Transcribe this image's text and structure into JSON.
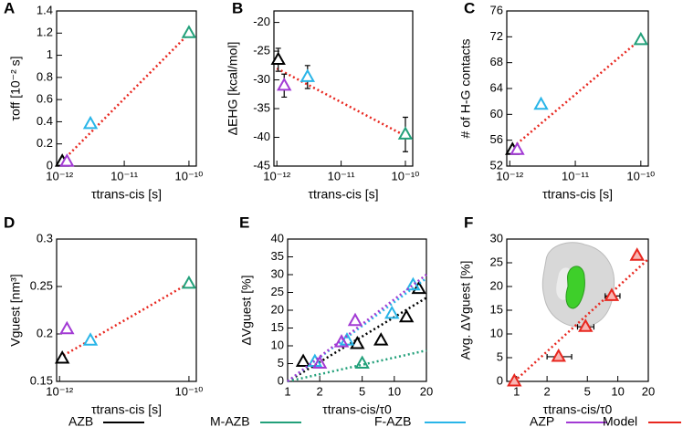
{
  "charts": [
    {
      "type": "scatter",
      "label": "A",
      "x_label": "τtrans-cis [s]",
      "y_label": "τoff [10⁻² s]",
      "xlog": true,
      "xlim": [
        9e-13,
        1.3e-10
      ],
      "xticks": [
        {
          "value": 1e-12,
          "label": "10⁻¹²"
        },
        {
          "value": 1e-11,
          "label": "10⁻¹¹"
        },
        {
          "value": 1e-10,
          "label": "10⁻¹⁰"
        }
      ],
      "ylim": [
        0,
        1.4
      ],
      "yticks": [
        0,
        0.2,
        0.4,
        0.6,
        0.8,
        1,
        1.2,
        1.4
      ],
      "series": [
        {
          "style": "line",
          "color": "#e8271f",
          "x": [
            1e-12,
            1.1e-10
          ],
          "values": [
            0.02,
            1.22
          ]
        },
        {
          "style": "points",
          "color": "#000000",
          "x": [
            1.1e-12
          ],
          "values": [
            0.04
          ]
        },
        {
          "style": "points",
          "color": "#22a07a",
          "x": [
            1e-10
          ],
          "values": [
            1.2
          ]
        },
        {
          "style": "points",
          "color": "#29b5e8",
          "x": [
            3e-12
          ],
          "values": [
            0.38
          ]
        },
        {
          "style": "points",
          "color": "#a23ad4",
          "x": [
            1.3e-12
          ],
          "values": [
            0.04
          ]
        }
      ]
    },
    {
      "type": "scatter",
      "label": "B",
      "x_label": "τtrans-cis [s]",
      "y_label": "ΔEHG [kcal/mol]",
      "xlog": true,
      "xlim": [
        9e-13,
        1.3e-10
      ],
      "xticks": [
        {
          "value": 1e-12,
          "label": "10⁻¹²"
        },
        {
          "value": 1e-11,
          "label": "10⁻¹¹"
        },
        {
          "value": 1e-10,
          "label": "10⁻¹⁰"
        }
      ],
      "ylim": [
        -45,
        -18
      ],
      "yticks": [
        -45,
        -40,
        -35,
        -30,
        -25,
        -20
      ],
      "series": [
        {
          "style": "line",
          "color": "#e8271f",
          "x": [
            1e-12,
            1.1e-10
          ],
          "values": [
            -28,
            -40
          ]
        },
        {
          "style": "points",
          "color": "#000000",
          "x": [
            1.05e-12
          ],
          "values": [
            -26.5
          ],
          "errors": [
            2
          ]
        },
        {
          "style": "points",
          "color": "#22a07a",
          "x": [
            1e-10
          ],
          "values": [
            -39.5
          ],
          "errors": [
            3
          ]
        },
        {
          "style": "points",
          "color": "#29b5e8",
          "x": [
            3e-12
          ],
          "values": [
            -29.5
          ],
          "errors": [
            2
          ]
        },
        {
          "style": "points",
          "color": "#a23ad4",
          "x": [
            1.3e-12
          ],
          "values": [
            -31
          ],
          "errors": [
            2
          ]
        }
      ]
    },
    {
      "type": "scatter",
      "label": "C",
      "x_label": "τtrans-cis [s]",
      "y_label": "# of H-G contacts",
      "xlog": true,
      "xlim": [
        9e-13,
        1.3e-10
      ],
      "xticks": [
        {
          "value": 1e-12,
          "label": "10⁻¹²"
        },
        {
          "value": 1e-11,
          "label": "10⁻¹¹"
        },
        {
          "value": 1e-10,
          "label": "10⁻¹⁰"
        }
      ],
      "ylim": [
        52,
        76
      ],
      "yticks": [
        52,
        56,
        60,
        64,
        68,
        72,
        76
      ],
      "series": [
        {
          "style": "line",
          "color": "#e8271f",
          "x": [
            1e-12,
            1.1e-10
          ],
          "values": [
            54.5,
            72
          ]
        },
        {
          "style": "points",
          "color": "#000000",
          "x": [
            1.1e-12
          ],
          "values": [
            54.5
          ]
        },
        {
          "style": "points",
          "color": "#22a07a",
          "x": [
            1e-10
          ],
          "values": [
            71.5
          ]
        },
        {
          "style": "points",
          "color": "#29b5e8",
          "x": [
            3e-12
          ],
          "values": [
            61.5
          ]
        },
        {
          "style": "points",
          "color": "#a23ad4",
          "x": [
            1.3e-12
          ],
          "values": [
            54.5
          ]
        }
      ]
    },
    {
      "type": "scatter",
      "label": "D",
      "x_label": "τtrans-cis [s]",
      "y_label": "Vguest [nm³]",
      "xlog": true,
      "xlim": [
        9e-13,
        1.3e-10
      ],
      "xticks": [
        {
          "value": 1e-12,
          "label": "10⁻¹²"
        },
        {
          "value": 1e-10,
          "label": "10⁻¹⁰"
        }
      ],
      "ylim": [
        0.15,
        0.3
      ],
      "yticks": [
        0.15,
        0.2,
        0.25,
        0.3
      ],
      "series": [
        {
          "style": "line",
          "color": "#e8271f",
          "x": [
            1e-12,
            1.1e-10
          ],
          "values": [
            0.175,
            0.255
          ]
        },
        {
          "style": "points",
          "color": "#000000",
          "x": [
            1.1e-12
          ],
          "values": [
            0.174
          ]
        },
        {
          "style": "points",
          "color": "#22a07a",
          "x": [
            1e-10
          ],
          "values": [
            0.253
          ]
        },
        {
          "style": "points",
          "color": "#29b5e8",
          "x": [
            3e-12
          ],
          "values": [
            0.193
          ]
        },
        {
          "style": "points",
          "color": "#a23ad4",
          "x": [
            1.3e-12
          ],
          "values": [
            0.205
          ]
        }
      ]
    },
    {
      "type": "scatter",
      "label": "E",
      "x_label": "τtrans-cis/τ0",
      "y_label": "ΔVguest [%]",
      "xlog": true,
      "xlim": [
        1,
        20
      ],
      "xticks": [
        1,
        2,
        5,
        10,
        20
      ],
      "ylim": [
        0,
        40
      ],
      "yticks": [
        0,
        5,
        10,
        15,
        20,
        25,
        30,
        35,
        40
      ],
      "series": [
        {
          "style": "open",
          "color": "#000000",
          "x": [
            1.4,
            4.5,
            7.5,
            13,
            17
          ],
          "values": [
            5.5,
            10.5,
            11.5,
            18,
            26
          ],
          "fit_x": [
            1,
            20
          ],
          "fit_values": [
            0,
            23.5
          ]
        },
        {
          "style": "open",
          "color": "#22a07a",
          "x": [
            5
          ],
          "values": [
            5
          ],
          "fit_x": [
            1,
            20
          ],
          "fit_values": [
            0,
            8.7
          ]
        },
        {
          "style": "open",
          "color": "#29b5e8",
          "x": [
            1.8,
            3.6,
            9.5,
            15
          ],
          "values": [
            5.5,
            11.5,
            19,
            27
          ],
          "fit_x": [
            1,
            20
          ],
          "fit_values": [
            0,
            29
          ]
        },
        {
          "style": "open",
          "color": "#a23ad4",
          "x": [
            2,
            3.2,
            4.3
          ],
          "values": [
            5,
            11,
            17
          ],
          "fit_x": [
            1,
            20
          ],
          "fit_values": [
            0,
            30
          ]
        }
      ]
    },
    {
      "type": "scatter",
      "label": "F",
      "x_label": "τtrans-cis/τ0",
      "y_label": "Avg. ΔVguest [%]",
      "xlog": true,
      "xlim": [
        0.8,
        20
      ],
      "xticks": [
        1,
        2,
        5,
        10,
        20
      ],
      "ylim": [
        0,
        30
      ],
      "yticks": [
        0,
        5,
        10,
        15,
        20,
        25,
        30
      ],
      "series": [
        {
          "style": "line",
          "color": "#e8271f",
          "x": [
            0.95,
            20
          ],
          "values": [
            0,
            25.8
          ]
        },
        {
          "style": "points",
          "color": "#e8271f",
          "x": [
            0.95,
            2.6,
            4.8,
            8.7,
            15.5
          ],
          "values": [
            0,
            5.2,
            11.5,
            18,
            26.5
          ],
          "x_low": [
            null,
            2,
            4,
            7.5,
            null
          ],
          "x_high": [
            null,
            3.5,
            5.8,
            10.5,
            null
          ]
        }
      ]
    }
  ],
  "legend": [
    {
      "name": "AZB",
      "color": "#000000"
    },
    {
      "name": "M-AZB",
      "color": "#22a07a"
    },
    {
      "name": "F-AZB",
      "color": "#29b5e8"
    },
    {
      "name": "AZP",
      "color": "#a23ad4"
    },
    {
      "name": "Model",
      "color": "#e8271f"
    }
  ]
}
